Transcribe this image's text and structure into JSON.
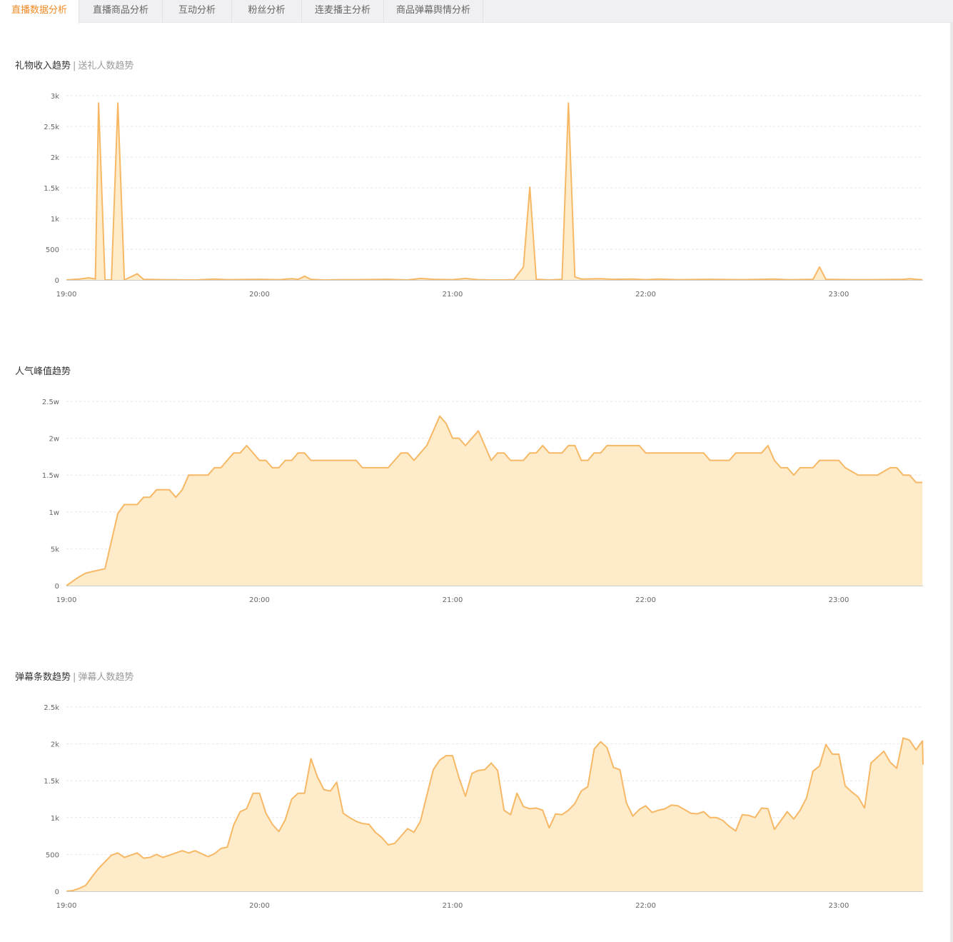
{
  "tabs": [
    {
      "label": "直播数据分析",
      "active": true
    },
    {
      "label": "直播商品分析",
      "active": false
    },
    {
      "label": "互动分析",
      "active": false
    },
    {
      "label": "粉丝分析",
      "active": false
    },
    {
      "label": "连麦播主分析",
      "active": false
    },
    {
      "label": "商品弹幕舆情分析",
      "active": false
    }
  ],
  "colors": {
    "accent": "#f08a24",
    "line": "#f7b866",
    "fill": "#fdebc9"
  },
  "sections": [
    {
      "title": "礼物收入趋势",
      "separator": "|",
      "alt_title": "送礼人数趋势"
    },
    {
      "title": "人气峰值趋势"
    },
    {
      "title": "弹幕条数趋势",
      "separator": "|",
      "alt_title": "弹幕人数趋势"
    }
  ],
  "chart_data": [
    {
      "type": "area",
      "title": "礼物收入趋势",
      "x_tick_labels": [
        "19:00",
        "20:00",
        "21:00",
        "22:00",
        "23:00"
      ],
      "y_tick_labels": [
        "0",
        "500",
        "1k",
        "1.5k",
        "2k",
        "2.5k",
        "3k"
      ],
      "ylim": [
        0,
        3000
      ],
      "xlim_minutes": [
        0,
        266
      ],
      "grid": true,
      "x_minutes": [
        0,
        4,
        8,
        12,
        14,
        16,
        18,
        20,
        22,
        24,
        26,
        30,
        34,
        38,
        42,
        50,
        60,
        70,
        80,
        90,
        100,
        110,
        113,
        116,
        120,
        130,
        140,
        150,
        160,
        170,
        180,
        190,
        200,
        210,
        220,
        228,
        132,
        134,
        136,
        138,
        140,
        240
      ],
      "values": [
        0,
        20,
        30,
        10,
        2880,
        0,
        0,
        0,
        2880,
        0,
        0,
        110,
        20,
        10,
        0,
        10,
        10,
        10,
        0,
        10,
        20,
        0,
        70,
        20,
        0,
        10,
        20,
        10,
        0,
        10,
        20,
        10,
        0,
        10,
        0,
        0,
        0,
        0,
        0,
        0,
        0,
        0
      ],
      "series_points": [
        [
          0,
          0
        ],
        [
          4,
          15
        ],
        [
          7,
          35
        ],
        [
          8,
          25
        ],
        [
          9,
          15
        ],
        [
          10,
          2880
        ],
        [
          12,
          0
        ],
        [
          14,
          0
        ],
        [
          16,
          2880
        ],
        [
          18,
          0
        ],
        [
          22,
          100
        ],
        [
          24,
          10
        ],
        [
          30,
          5
        ],
        [
          40,
          0
        ],
        [
          46,
          15
        ],
        [
          50,
          5
        ],
        [
          60,
          10
        ],
        [
          66,
          5
        ],
        [
          70,
          20
        ],
        [
          72,
          10
        ],
        [
          74,
          60
        ],
        [
          76,
          10
        ],
        [
          80,
          0
        ],
        [
          86,
          5
        ],
        [
          90,
          5
        ],
        [
          100,
          10
        ],
        [
          106,
          0
        ],
        [
          110,
          25
        ],
        [
          114,
          10
        ],
        [
          120,
          5
        ],
        [
          124,
          25
        ],
        [
          128,
          5
        ],
        [
          132,
          0
        ],
        [
          136,
          0
        ],
        [
          139,
          5
        ],
        [
          142,
          210
        ],
        [
          144,
          1510
        ],
        [
          146,
          10
        ],
        [
          150,
          0
        ],
        [
          154,
          10
        ],
        [
          156,
          2880
        ],
        [
          158,
          50
        ],
        [
          160,
          15
        ],
        [
          166,
          20
        ],
        [
          170,
          10
        ],
        [
          176,
          15
        ],
        [
          180,
          5
        ],
        [
          184,
          15
        ],
        [
          190,
          5
        ],
        [
          200,
          10
        ],
        [
          210,
          5
        ],
        [
          220,
          15
        ],
        [
          224,
          5
        ],
        [
          226,
          5
        ],
        [
          232,
          10
        ],
        [
          234,
          210
        ],
        [
          236,
          10
        ],
        [
          244,
          5
        ],
        [
          250,
          5
        ],
        [
          260,
          10
        ],
        [
          262,
          20
        ],
        [
          264,
          10
        ],
        [
          266,
          5
        ]
      ]
    },
    {
      "type": "area",
      "title": "人气峰值趋势",
      "x_tick_labels": [
        "19:00",
        "20:00",
        "21:00",
        "22:00",
        "23:00"
      ],
      "y_tick_labels": [
        "0",
        "5k",
        "1w",
        "1.5w",
        "2w",
        "2.5w"
      ],
      "ylim": [
        0,
        25000
      ],
      "xlim_minutes": [
        0,
        266
      ],
      "grid": true,
      "series_points": [
        [
          0,
          0
        ],
        [
          4,
          1200
        ],
        [
          6,
          1700
        ],
        [
          8,
          1900
        ],
        [
          10,
          2100
        ],
        [
          12,
          2300
        ],
        [
          16,
          9800
        ],
        [
          18,
          11000
        ],
        [
          22,
          11000
        ],
        [
          24,
          12000
        ],
        [
          26,
          12000
        ],
        [
          28,
          13000
        ],
        [
          32,
          13000
        ],
        [
          34,
          12000
        ],
        [
          36,
          13000
        ],
        [
          38,
          15000
        ],
        [
          44,
          15000
        ],
        [
          46,
          16000
        ],
        [
          48,
          16000
        ],
        [
          52,
          18000
        ],
        [
          54,
          18000
        ],
        [
          56,
          19000
        ],
        [
          58,
          18000
        ],
        [
          60,
          17000
        ],
        [
          62,
          17000
        ],
        [
          64,
          16000
        ],
        [
          66,
          16000
        ],
        [
          68,
          17000
        ],
        [
          70,
          17000
        ],
        [
          72,
          18000
        ],
        [
          74,
          18000
        ],
        [
          76,
          17000
        ],
        [
          90,
          17000
        ],
        [
          92,
          16000
        ],
        [
          100,
          16000
        ],
        [
          104,
          18000
        ],
        [
          106,
          18000
        ],
        [
          108,
          17000
        ],
        [
          112,
          19000
        ],
        [
          114,
          21000
        ],
        [
          116,
          23000
        ],
        [
          118,
          22000
        ],
        [
          120,
          20000
        ],
        [
          122,
          20000
        ],
        [
          124,
          19000
        ],
        [
          128,
          21000
        ],
        [
          130,
          19000
        ],
        [
          132,
          17000
        ],
        [
          134,
          18000
        ],
        [
          136,
          18000
        ],
        [
          138,
          17000
        ],
        [
          142,
          17000
        ],
        [
          144,
          18000
        ],
        [
          146,
          18000
        ],
        [
          148,
          19000
        ],
        [
          150,
          18000
        ],
        [
          154,
          18000
        ],
        [
          156,
          19000
        ],
        [
          158,
          19000
        ],
        [
          160,
          17000
        ],
        [
          162,
          17000
        ],
        [
          164,
          18000
        ],
        [
          166,
          18000
        ],
        [
          168,
          19000
        ],
        [
          178,
          19000
        ],
        [
          180,
          18000
        ],
        [
          198,
          18000
        ],
        [
          200,
          17000
        ],
        [
          206,
          17000
        ],
        [
          208,
          18000
        ],
        [
          216,
          18000
        ],
        [
          218,
          19000
        ],
        [
          220,
          17000
        ],
        [
          222,
          16000
        ],
        [
          224,
          16000
        ],
        [
          226,
          15000
        ],
        [
          228,
          16000
        ],
        [
          232,
          16000
        ],
        [
          234,
          17000
        ],
        [
          240,
          17000
        ],
        [
          242,
          16000
        ],
        [
          246,
          15000
        ],
        [
          252,
          15000
        ],
        [
          256,
          16000
        ],
        [
          258,
          16000
        ],
        [
          260,
          15000
        ],
        [
          262,
          15000
        ],
        [
          264,
          14000
        ],
        [
          266,
          14000
        ]
      ]
    },
    {
      "type": "area",
      "title": "弹幕条数趋势",
      "x_tick_labels": [
        "19:00",
        "20:00",
        "21:00",
        "22:00",
        "23:00"
      ],
      "y_tick_labels": [
        "0",
        "500",
        "1k",
        "1.5k",
        "2k",
        "2.5k"
      ],
      "ylim": [
        0,
        2500
      ],
      "xlim_minutes": [
        0,
        266
      ],
      "grid": true,
      "series_points": [
        [
          0,
          0
        ],
        [
          2,
          10
        ],
        [
          4,
          40
        ],
        [
          6,
          80
        ],
        [
          8,
          200
        ],
        [
          10,
          310
        ],
        [
          12,
          400
        ],
        [
          14,
          490
        ],
        [
          16,
          520
        ],
        [
          18,
          460
        ],
        [
          20,
          490
        ],
        [
          22,
          520
        ],
        [
          24,
          450
        ],
        [
          26,
          460
        ],
        [
          28,
          500
        ],
        [
          30,
          460
        ],
        [
          32,
          490
        ],
        [
          34,
          520
        ],
        [
          36,
          550
        ],
        [
          38,
          520
        ],
        [
          40,
          550
        ],
        [
          42,
          510
        ],
        [
          44,
          470
        ],
        [
          46,
          510
        ],
        [
          48,
          580
        ],
        [
          50,
          600
        ],
        [
          52,
          900
        ],
        [
          54,
          1080
        ],
        [
          56,
          1120
        ],
        [
          58,
          1330
        ],
        [
          60,
          1330
        ],
        [
          62,
          1060
        ],
        [
          64,
          910
        ],
        [
          66,
          810
        ],
        [
          68,
          970
        ],
        [
          70,
          1250
        ],
        [
          72,
          1330
        ],
        [
          74,
          1330
        ],
        [
          76,
          1800
        ],
        [
          78,
          1550
        ],
        [
          80,
          1380
        ],
        [
          82,
          1360
        ],
        [
          84,
          1480
        ],
        [
          86,
          1060
        ],
        [
          88,
          1000
        ],
        [
          90,
          950
        ],
        [
          92,
          920
        ],
        [
          94,
          910
        ],
        [
          96,
          800
        ],
        [
          98,
          730
        ],
        [
          100,
          630
        ],
        [
          102,
          650
        ],
        [
          104,
          750
        ],
        [
          106,
          850
        ],
        [
          108,
          800
        ],
        [
          110,
          950
        ],
        [
          112,
          1300
        ],
        [
          114,
          1650
        ],
        [
          116,
          1780
        ],
        [
          118,
          1840
        ],
        [
          120,
          1840
        ],
        [
          122,
          1540
        ],
        [
          124,
          1290
        ],
        [
          126,
          1600
        ],
        [
          128,
          1640
        ],
        [
          130,
          1650
        ],
        [
          132,
          1740
        ],
        [
          134,
          1640
        ],
        [
          136,
          1100
        ],
        [
          138,
          1040
        ],
        [
          140,
          1330
        ],
        [
          142,
          1150
        ],
        [
          144,
          1120
        ],
        [
          146,
          1130
        ],
        [
          148,
          1100
        ],
        [
          150,
          860
        ],
        [
          152,
          1050
        ],
        [
          154,
          1040
        ],
        [
          156,
          1100
        ],
        [
          158,
          1190
        ],
        [
          160,
          1360
        ],
        [
          162,
          1420
        ],
        [
          164,
          1930
        ],
        [
          166,
          2030
        ],
        [
          168,
          1950
        ],
        [
          170,
          1680
        ],
        [
          172,
          1650
        ],
        [
          174,
          1200
        ],
        [
          176,
          1020
        ],
        [
          178,
          1110
        ],
        [
          180,
          1160
        ],
        [
          182,
          1070
        ],
        [
          184,
          1100
        ],
        [
          186,
          1120
        ],
        [
          188,
          1170
        ],
        [
          190,
          1160
        ],
        [
          192,
          1110
        ],
        [
          194,
          1060
        ],
        [
          196,
          1050
        ],
        [
          198,
          1080
        ],
        [
          200,
          1000
        ],
        [
          202,
          1000
        ],
        [
          204,
          960
        ],
        [
          206,
          880
        ],
        [
          208,
          820
        ],
        [
          210,
          1040
        ],
        [
          212,
          1030
        ],
        [
          214,
          1000
        ],
        [
          216,
          1130
        ],
        [
          218,
          1120
        ],
        [
          220,
          840
        ],
        [
          222,
          960
        ],
        [
          224,
          1080
        ],
        [
          226,
          980
        ],
        [
          228,
          1100
        ],
        [
          230,
          1270
        ],
        [
          232,
          1630
        ],
        [
          234,
          1700
        ],
        [
          236,
          1990
        ],
        [
          238,
          1860
        ],
        [
          240,
          1860
        ],
        [
          242,
          1430
        ],
        [
          244,
          1350
        ],
        [
          246,
          1280
        ],
        [
          248,
          1130
        ],
        [
          250,
          1740
        ],
        [
          252,
          1820
        ],
        [
          254,
          1900
        ],
        [
          256,
          1750
        ],
        [
          258,
          1670
        ],
        [
          260,
          2080
        ],
        [
          262,
          2050
        ],
        [
          264,
          1920
        ],
        [
          266,
          2040
        ],
        [
          268,
          1720
        ]
      ]
    }
  ]
}
